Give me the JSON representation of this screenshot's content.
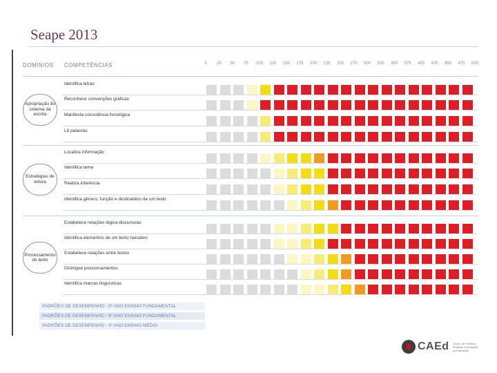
{
  "title": "Seape 2013",
  "header": {
    "domains_label": "DOMÍNIOS",
    "competencies_label": "COMPETÊNCIAS"
  },
  "scale": [
    "0",
    "25",
    "50",
    "75",
    "100",
    "125",
    "150",
    "175",
    "200",
    "225",
    "250",
    "275",
    "300",
    "325",
    "350",
    "375",
    "400",
    "425",
    "450",
    "475",
    "500"
  ],
  "domains": [
    {
      "label": "Apropriação do sistema da escrita",
      "rows": [
        {
          "label": "Identifica letras",
          "cells": [
            "g",
            "g",
            "g",
            "y1",
            "y3",
            "r",
            "r",
            "r",
            "r",
            "r",
            "r",
            "r",
            "r",
            "r",
            "r",
            "r",
            "r",
            "r",
            "r",
            "r"
          ]
        },
        {
          "label": "Reconhece convenções gráficas",
          "cells": [
            "g",
            "g",
            "g",
            "y1",
            "r",
            "r",
            "r",
            "r",
            "r",
            "r",
            "r",
            "r",
            "r",
            "r",
            "r",
            "r",
            "r",
            "r",
            "r",
            "r"
          ]
        },
        {
          "label": "Manifesta consciência fonológica",
          "cells": [
            "g",
            "g",
            "g",
            "g",
            "y2",
            "r",
            "r",
            "r",
            "r",
            "r",
            "r",
            "r",
            "r",
            "r",
            "r",
            "r",
            "r",
            "r",
            "r",
            "r"
          ]
        },
        {
          "label": "Lê palavras",
          "cells": [
            "g",
            "g",
            "g",
            "g",
            "y2",
            "r",
            "r",
            "r",
            "r",
            "r",
            "r",
            "r",
            "r",
            "r",
            "r",
            "r",
            "r",
            "r",
            "r",
            "r"
          ]
        }
      ]
    },
    {
      "label": "Estratégias de leitura",
      "rows": [
        {
          "label": "Localiza informação",
          "cells": [
            "g",
            "g",
            "g",
            "g",
            "y1",
            "y2",
            "y3",
            "y3",
            "o",
            "r",
            "r",
            "r",
            "r",
            "r",
            "r",
            "r",
            "r",
            "r",
            "r",
            "r"
          ]
        },
        {
          "label": "Identifica tema",
          "cells": [
            "g",
            "g",
            "g",
            "g",
            "g",
            "y1",
            "y2",
            "y3",
            "y3",
            "r",
            "r",
            "r",
            "r",
            "r",
            "r",
            "r",
            "r",
            "r",
            "r",
            "r"
          ]
        },
        {
          "label": "Realiza inferência",
          "cells": [
            "g",
            "g",
            "g",
            "g",
            "g",
            "y1",
            "y2",
            "y3",
            "y3",
            "r",
            "r",
            "r",
            "r",
            "r",
            "r",
            "r",
            "r",
            "r",
            "r",
            "r"
          ]
        },
        {
          "label": "Identifica gênero, função e destinatário de um texto",
          "cells": [
            "g",
            "g",
            "g",
            "g",
            "g",
            "g",
            "y1",
            "y2",
            "y3",
            "o",
            "r",
            "r",
            "r",
            "r",
            "r",
            "r",
            "r",
            "r",
            "r",
            "r"
          ]
        }
      ]
    },
    {
      "label": "Processamento do texto",
      "rows": [
        {
          "label": "Estabelece relações lógico-discursivas",
          "cells": [
            "g",
            "g",
            "g",
            "g",
            "g",
            "y1",
            "y1",
            "y2",
            "y3",
            "y3",
            "r",
            "r",
            "r",
            "r",
            "r",
            "r",
            "r",
            "r",
            "r",
            "r"
          ]
        },
        {
          "label": "Identifica elementos de um texto narrativo",
          "cells": [
            "g",
            "g",
            "g",
            "g",
            "g",
            "y1",
            "y1",
            "y2",
            "y3",
            "r",
            "r",
            "r",
            "r",
            "r",
            "r",
            "r",
            "r",
            "r",
            "r",
            "r"
          ]
        },
        {
          "label": "Estabelece relações entre textos",
          "cells": [
            "g",
            "g",
            "g",
            "g",
            "g",
            "g",
            "y1",
            "y1",
            "y2",
            "y3",
            "o",
            "r",
            "r",
            "r",
            "r",
            "r",
            "r",
            "r",
            "r",
            "r"
          ]
        },
        {
          "label": "Distingue posicionamentos",
          "cells": [
            "g",
            "g",
            "g",
            "g",
            "g",
            "g",
            "g",
            "y1",
            "y2",
            "y3",
            "o",
            "r",
            "r",
            "r",
            "r",
            "r",
            "r",
            "r",
            "r",
            "r"
          ]
        },
        {
          "label": "Identifica marcas linguísticas",
          "cells": [
            "g",
            "g",
            "g",
            "g",
            "g",
            "g",
            "g",
            "y1",
            "y1",
            "y2",
            "y3",
            "o",
            "r",
            "r",
            "r",
            "r",
            "r",
            "r",
            "r",
            "r"
          ]
        }
      ]
    }
  ],
  "legend": [
    "PADRÕES DE DESEMPENHO - 5º ANO ENSINO FUNDAMENTAL",
    "PADRÕES DE DESEMPENHO - 9º ANO ENSINO FUNDAMENTAL",
    "PADRÕES DE DESEMPENHO - 3º ANO ENSINO MÉDIO"
  ],
  "colors": {
    "g": "#dcdcdc",
    "y1": "#fbf6c3",
    "y2": "#f6ec78",
    "y3": "#f2dc14",
    "o": "#ef9a21",
    "r": "#de1e26"
  },
  "footer": {
    "brand": "CAEd",
    "tagline": "Centro de Políticas Públicas e Avaliação da Educação"
  }
}
